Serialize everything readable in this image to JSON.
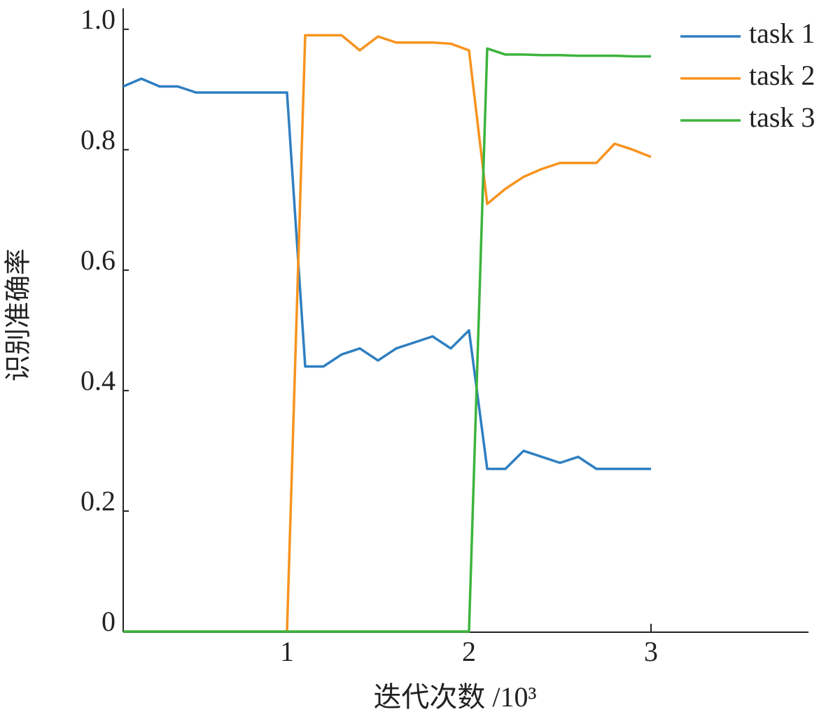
{
  "chart_data": {
    "type": "line",
    "xlabel": "迭代次数 /10³",
    "ylabel": "识别准确率",
    "x": [
      0.1,
      0.2,
      0.3,
      0.4,
      0.5,
      0.6,
      0.7,
      0.8,
      0.9,
      1.0,
      1.1,
      1.2,
      1.3,
      1.4,
      1.5,
      1.6,
      1.7,
      1.8,
      1.9,
      2.0,
      2.1,
      2.2,
      2.3,
      2.4,
      2.5,
      2.6,
      2.7,
      2.8,
      2.9,
      3.0
    ],
    "series": [
      {
        "name": "task 1",
        "color": "#2f7fc1",
        "values": [
          0.905,
          0.918,
          0.905,
          0.905,
          0.895,
          0.895,
          0.895,
          0.895,
          0.895,
          0.895,
          0.44,
          0.44,
          0.46,
          0.47,
          0.45,
          0.47,
          0.48,
          0.49,
          0.47,
          0.5,
          0.27,
          0.27,
          0.3,
          0.29,
          0.28,
          0.29,
          0.27,
          0.27,
          0.27,
          0.27
        ]
      },
      {
        "name": "task 2",
        "color": "#f7931e",
        "values": [
          null,
          null,
          null,
          null,
          null,
          null,
          null,
          null,
          null,
          0,
          0.99,
          0.99,
          0.99,
          0.965,
          0.988,
          0.978,
          0.978,
          0.978,
          0.976,
          0.965,
          0.71,
          0.735,
          0.755,
          0.768,
          0.778,
          0.778,
          0.778,
          0.81,
          0.8,
          0.788
        ]
      },
      {
        "name": "task 3",
        "color": "#3cb43c",
        "values": [
          0,
          0,
          0,
          0,
          0,
          0,
          0,
          0,
          0,
          0,
          0,
          0,
          0,
          0,
          0,
          0,
          0,
          0,
          0,
          0,
          0.968,
          0.958,
          0.958,
          0.957,
          0.957,
          0.956,
          0.956,
          0.956,
          0.955,
          0.955
        ]
      }
    ],
    "xlim": [
      0.1,
      3.85
    ],
    "xticks": [
      1,
      2,
      3
    ],
    "ylim": [
      0,
      1.03
    ],
    "yticks": [
      0,
      0.2,
      0.4,
      0.6,
      0.8,
      {
        "value": 1,
        "label": "1.0"
      }
    ],
    "legend": "upper-right"
  }
}
